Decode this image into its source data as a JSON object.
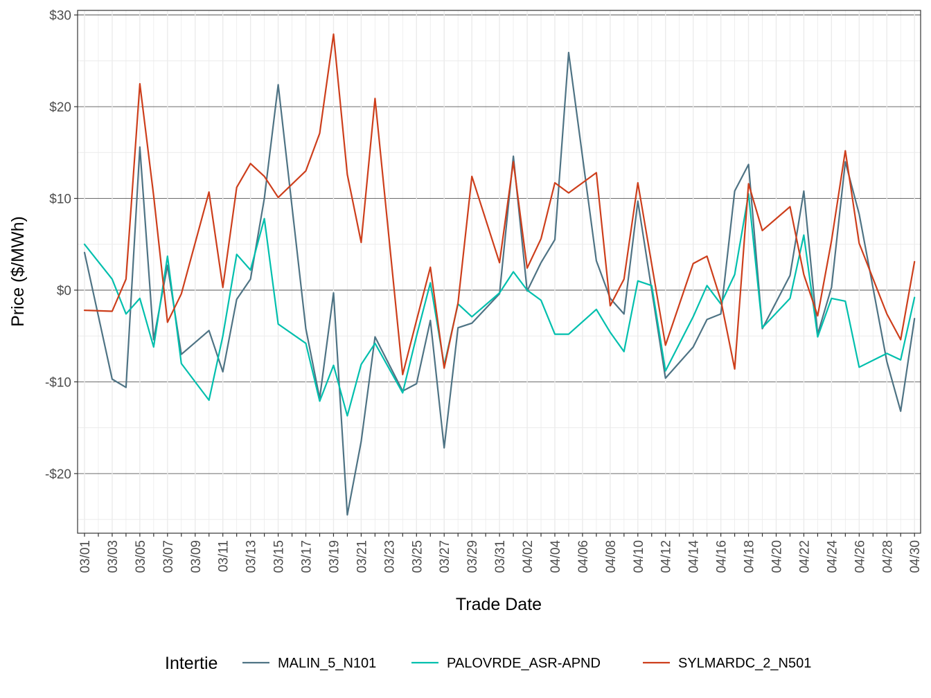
{
  "chart_data": {
    "type": "line",
    "title": "",
    "xlabel": "Trade Date",
    "ylabel": "Price ($/MWh)",
    "ylim": [
      -26.5,
      30.5
    ],
    "y_ticks": [
      -20,
      -10,
      0,
      10,
      20,
      30
    ],
    "y_tick_labels": [
      "-$20",
      "-$10",
      "$0",
      "$10",
      "$20",
      "$30"
    ],
    "x": [
      "03/01",
      "03/02",
      "03/03",
      "03/04",
      "03/05",
      "03/06",
      "03/07",
      "03/08",
      "03/09",
      "03/10",
      "03/11",
      "03/12",
      "03/13",
      "03/14",
      "03/15",
      "03/16",
      "03/17",
      "03/18",
      "03/19",
      "03/20",
      "03/21",
      "03/22",
      "03/23",
      "03/24",
      "03/25",
      "03/26",
      "03/27",
      "03/28",
      "03/29",
      "03/30",
      "03/31",
      "04/01",
      "04/02",
      "04/03",
      "04/04",
      "04/05",
      "04/06",
      "04/07",
      "04/08",
      "04/09",
      "04/10",
      "04/11",
      "04/12",
      "04/13",
      "04/14",
      "04/15",
      "04/16",
      "04/17",
      "04/18",
      "04/19",
      "04/20",
      "04/21",
      "04/22",
      "04/23",
      "04/24",
      "04/25",
      "04/26",
      "04/27",
      "04/28",
      "04/29",
      "04/30"
    ],
    "x_tick_labels": [
      "03/01",
      "03/03",
      "03/05",
      "03/07",
      "03/09",
      "03/11",
      "03/13",
      "03/15",
      "03/17",
      "03/19",
      "03/21",
      "03/23",
      "03/25",
      "03/27",
      "03/29",
      "03/31",
      "04/02",
      "04/04",
      "04/06",
      "04/08",
      "04/10",
      "04/12",
      "04/14",
      "04/16",
      "04/18",
      "04/20",
      "04/22",
      "04/24",
      "04/26",
      "04/28",
      "04/30"
    ],
    "grid": true,
    "legend": {
      "title": "Intertie",
      "position": "bottom"
    },
    "series": [
      {
        "name": "MALIN_5_N101",
        "color": "#4e7384",
        "values": [
          4.1,
          null,
          -9.7,
          -10.6,
          15.6,
          -5.4,
          2.7,
          -7.0,
          null,
          -4.4,
          -8.9,
          -1.0,
          1.2,
          10.0,
          22.4,
          null,
          -4.2,
          -11.8,
          -0.3,
          -24.5,
          -16.5,
          -5.1,
          null,
          -11.0,
          -10.2,
          -3.3,
          -17.2,
          -4.1,
          -3.6,
          null,
          -0.4,
          14.6,
          -0.1,
          3.0,
          5.5,
          25.9,
          null,
          3.2,
          -0.9,
          -2.6,
          9.7,
          null,
          -9.6,
          null,
          -6.2,
          -3.2,
          -2.6,
          10.8,
          13.7,
          -4.2,
          null,
          1.6,
          10.8,
          -4.8,
          0.3,
          14.0,
          8.3,
          null,
          -7.8,
          -13.2,
          -3.1
        ]
      },
      {
        "name": "PALOVRDE_ASR-APND",
        "color": "#00bfad",
        "values": [
          5.0,
          null,
          1.2,
          -2.6,
          -0.9,
          -6.2,
          3.7,
          -8.0,
          null,
          -12.0,
          -5.0,
          3.9,
          2.2,
          7.8,
          -3.7,
          null,
          -5.8,
          -12.1,
          -8.2,
          -13.7,
          -8.1,
          -5.8,
          null,
          -11.2,
          -5.0,
          0.8,
          -8.2,
          -1.5,
          -2.9,
          null,
          -0.3,
          2.0,
          0.0,
          -1.1,
          -4.8,
          -4.8,
          null,
          -2.1,
          -4.6,
          -6.7,
          1.0,
          0.5,
          -8.8,
          null,
          -2.9,
          0.5,
          -1.5,
          1.7,
          10.5,
          -4.1,
          null,
          -0.9,
          6.0,
          -5.1,
          -0.9,
          -1.2,
          -8.4,
          null,
          -6.9,
          -7.6,
          -0.8
        ]
      },
      {
        "name": "SYLMARDC_2_N501",
        "color": "#cd3e1b",
        "values": [
          -2.2,
          null,
          -2.3,
          1.2,
          22.5,
          10.3,
          -3.5,
          -0.4,
          null,
          10.7,
          0.3,
          11.2,
          13.8,
          12.4,
          10.1,
          null,
          13.0,
          17.1,
          27.9,
          12.6,
          5.2,
          20.9,
          null,
          -9.2,
          -3.3,
          2.5,
          -8.5,
          -1.4,
          12.4,
          null,
          3.0,
          14.0,
          2.4,
          5.6,
          11.7,
          10.6,
          null,
          12.8,
          -1.7,
          1.2,
          11.7,
          null,
          -6.0,
          null,
          2.9,
          3.7,
          -1.1,
          -8.6,
          11.6,
          6.5,
          null,
          9.1,
          1.7,
          -2.8,
          5.4,
          15.2,
          5.1,
          null,
          -2.6,
          -5.4,
          3.1
        ]
      }
    ]
  }
}
